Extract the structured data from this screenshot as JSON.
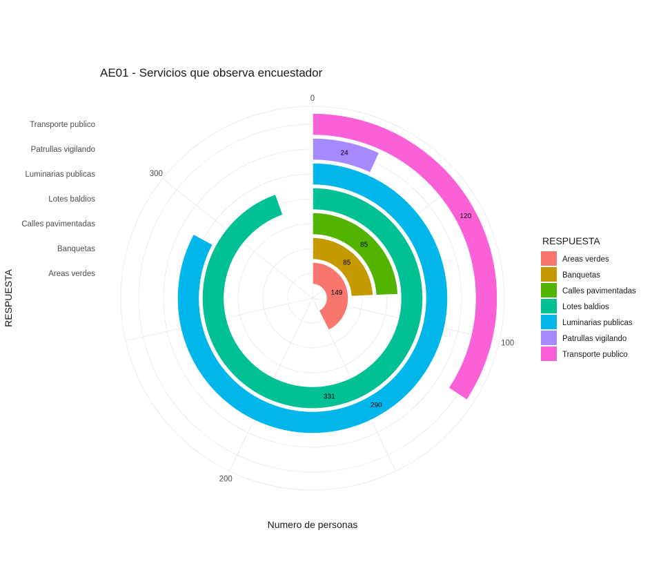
{
  "chart_data": {
    "type": "bar",
    "coord": "polar",
    "title": "AE01 - Servicios que observa encuestador",
    "xlabel": "RESPUESTA",
    "ylabel": "Numero de personas",
    "categories": [
      "Areas verdes",
      "Banquetas",
      "Calles pavimentadas",
      "Lotes baldios",
      "Luminarias publicas",
      "Patrullas vigilando",
      "Transporte publico"
    ],
    "values": [
      149,
      85,
      85,
      331,
      290,
      24,
      120
    ],
    "labels": [
      "149",
      "85",
      "85",
      "331",
      "290",
      "24",
      "120"
    ],
    "theta_ticks": [
      0,
      100,
      200,
      300
    ],
    "theta_tick_labels": [
      "0",
      "100",
      "200",
      "300"
    ],
    "theta_max": 350,
    "legend_title": "RESPUESTA",
    "legend_position": "right",
    "grid": true,
    "colors": [
      "#F8766D",
      "#C49A00",
      "#53B400",
      "#00C094",
      "#00B6EB",
      "#A58AFF",
      "#FB61D7"
    ]
  }
}
